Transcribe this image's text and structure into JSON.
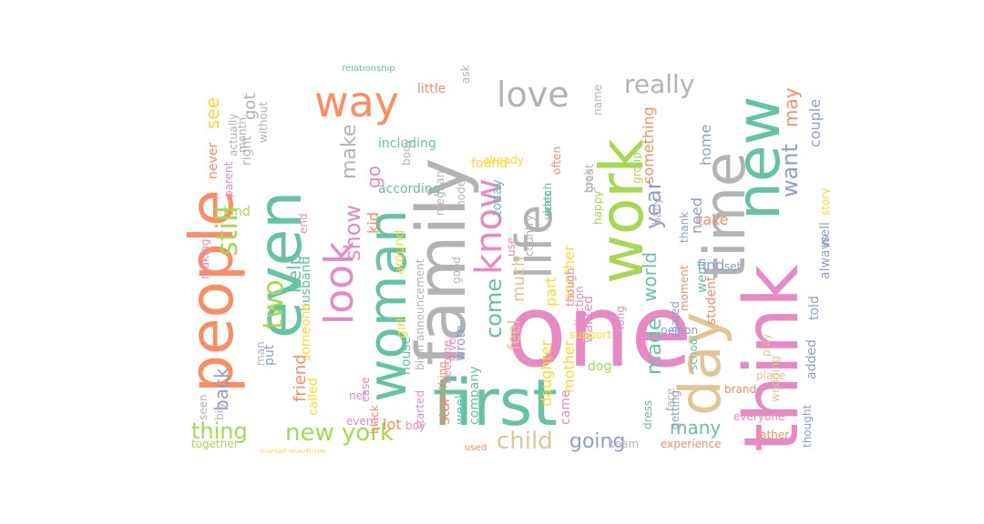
{
  "colors": {
    "teal": "#66c2a5",
    "orange": "#fc8d62",
    "blue": "#8da0cb",
    "pink": "#e78ac3",
    "green": "#a6d854",
    "yellow": "#ffd92f",
    "tan": "#e5c494",
    "gray": "#b3b3b3"
  },
  "words": [
    {
      "t": "people",
      "c": "orange"
    },
    {
      "t": "even",
      "c": "teal"
    },
    {
      "t": "way",
      "c": "orange"
    },
    {
      "t": "family",
      "c": "gray"
    },
    {
      "t": "woman",
      "c": "teal"
    },
    {
      "t": "one",
      "c": "pink"
    },
    {
      "t": "first",
      "c": "teal"
    },
    {
      "t": "life",
      "c": "gray"
    },
    {
      "t": "work",
      "c": "green"
    },
    {
      "t": "time",
      "c": "gray"
    },
    {
      "t": "new",
      "c": "teal"
    },
    {
      "t": "think",
      "c": "pink"
    },
    {
      "t": "day",
      "c": "tan"
    },
    {
      "t": "know",
      "c": "pink"
    },
    {
      "t": "love",
      "c": "gray"
    },
    {
      "t": "look",
      "c": "pink"
    },
    {
      "t": "still",
      "c": "green"
    },
    {
      "t": "see",
      "c": "yellow"
    },
    {
      "t": "got",
      "c": "gray"
    },
    {
      "t": "right",
      "c": "gray"
    },
    {
      "t": "back",
      "c": "blue"
    },
    {
      "t": "thing",
      "c": "green"
    },
    {
      "t": "new york",
      "c": "green"
    },
    {
      "t": "two",
      "c": "green"
    },
    {
      "t": "husband",
      "c": "teal"
    },
    {
      "t": "show",
      "c": "pink"
    },
    {
      "t": "make",
      "c": "gray"
    },
    {
      "t": "go",
      "c": "pink"
    },
    {
      "t": "kid",
      "c": "orange"
    },
    {
      "t": "help",
      "c": "teal"
    },
    {
      "t": "friend",
      "c": "orange"
    },
    {
      "t": "come",
      "c": "teal"
    },
    {
      "t": "child",
      "c": "tan"
    },
    {
      "t": "going",
      "c": "blue"
    },
    {
      "t": "much",
      "c": "tan"
    },
    {
      "t": "feel",
      "c": "tan"
    },
    {
      "t": "year",
      "c": "blue"
    },
    {
      "t": "world",
      "c": "teal"
    },
    {
      "t": "made",
      "c": "teal"
    },
    {
      "t": "many",
      "c": "teal"
    },
    {
      "t": "really",
      "c": "gray"
    },
    {
      "t": "want",
      "c": "blue"
    },
    {
      "t": "may",
      "c": "orange"
    },
    {
      "t": "couple",
      "c": "blue"
    },
    {
      "t": "always",
      "c": "blue"
    },
    {
      "t": "told",
      "c": "blue"
    },
    {
      "t": "added",
      "c": "blue"
    },
    {
      "t": "thought",
      "c": "blue"
    },
    {
      "t": "well",
      "c": "blue"
    },
    {
      "t": "story",
      "c": "yellow"
    },
    {
      "t": "take",
      "c": "orange"
    },
    {
      "t": "something",
      "c": "orange"
    },
    {
      "t": "home",
      "c": "blue"
    },
    {
      "t": "need",
      "c": "blue"
    },
    {
      "t": "find",
      "c": "blue"
    },
    {
      "t": "mother",
      "c": "yellow"
    },
    {
      "t": "another",
      "c": "yellow"
    },
    {
      "t": "dog",
      "c": "green"
    },
    {
      "t": "daughter",
      "c": "yellow"
    },
    {
      "t": "part",
      "c": "yellow"
    },
    {
      "t": "little",
      "c": "orange"
    },
    {
      "t": "lot",
      "c": "orange"
    },
    {
      "t": "star",
      "c": "orange"
    },
    {
      "t": "according",
      "c": "teal"
    },
    {
      "t": "including",
      "c": "teal"
    },
    {
      "t": "relationship",
      "c": "teal"
    },
    {
      "t": "kind",
      "c": "green"
    },
    {
      "t": "never",
      "c": "orange"
    },
    {
      "t": "put",
      "c": "blue"
    },
    {
      "t": "called",
      "c": "yellow"
    },
    {
      "t": "someone",
      "c": "yellow"
    },
    {
      "t": "girl",
      "c": "yellow"
    },
    {
      "t": "around",
      "c": "yellow"
    },
    {
      "t": "together",
      "c": "green"
    },
    {
      "t": "social medium",
      "c": "yellow"
    },
    {
      "t": "house",
      "c": "teal"
    },
    {
      "t": "week",
      "c": "teal"
    },
    {
      "t": "wrote",
      "c": "blue"
    },
    {
      "t": "company",
      "c": "teal"
    },
    {
      "t": "today",
      "c": "teal"
    },
    {
      "t": "watch",
      "c": "teal"
    },
    {
      "t": "experience",
      "c": "orange"
    },
    {
      "t": "student",
      "c": "orange"
    },
    {
      "t": "brand",
      "c": "orange"
    },
    {
      "t": "went",
      "c": "teal"
    },
    {
      "t": "set",
      "c": "blue"
    },
    {
      "t": "moment",
      "c": "orange"
    },
    {
      "t": "school",
      "c": "teal"
    },
    {
      "t": "dress",
      "c": "teal"
    },
    {
      "t": "came",
      "c": "pink"
    },
    {
      "t": "wanted",
      "c": "pink"
    },
    {
      "t": "long",
      "c": "pink"
    },
    {
      "t": "baby",
      "c": "gray"
    },
    {
      "t": "face",
      "c": "gray"
    },
    {
      "t": "group",
      "c": "green"
    },
    {
      "t": "found",
      "c": "yellow"
    },
    {
      "t": "asked",
      "c": "gray"
    },
    {
      "t": "already",
      "c": "yellow"
    },
    {
      "t": "took",
      "c": "gray"
    },
    {
      "t": "end",
      "c": "pink"
    },
    {
      "t": "parent",
      "c": "pink"
    },
    {
      "t": "making",
      "c": "pink"
    },
    {
      "t": "everyone",
      "c": "pink"
    },
    {
      "t": "father",
      "c": "orange"
    },
    {
      "t": "everything",
      "c": "orange"
    },
    {
      "t": "become",
      "c": "pink"
    },
    {
      "t": "though",
      "c": "pink"
    },
    {
      "t": "collection",
      "c": "pink"
    },
    {
      "t": "started",
      "c": "pink"
    },
    {
      "t": "black",
      "c": "orange"
    },
    {
      "t": "used",
      "c": "orange"
    },
    {
      "t": "birth announcement",
      "c": "gray"
    },
    {
      "t": "video",
      "c": "teal"
    },
    {
      "t": "good",
      "c": "gray"
    },
    {
      "t": "great",
      "c": "gray"
    },
    {
      "t": "name",
      "c": "gray"
    },
    {
      "t": "team",
      "c": "gray"
    },
    {
      "t": "often",
      "c": "orange"
    },
    {
      "t": "person",
      "c": "blue"
    },
    {
      "t": "thank",
      "c": "blue"
    },
    {
      "t": "getting",
      "c": "blue"
    },
    {
      "t": "shared",
      "c": "blue"
    },
    {
      "t": "big",
      "c": "gray"
    },
    {
      "t": "man",
      "c": "gray"
    },
    {
      "t": "seen",
      "c": "gray"
    },
    {
      "t": "actually",
      "c": "gray"
    },
    {
      "t": "month",
      "c": "gray"
    },
    {
      "t": "without",
      "c": "gray"
    },
    {
      "t": "body",
      "c": "gray"
    },
    {
      "t": "meghan",
      "c": "gray"
    },
    {
      "t": "model",
      "c": "gray"
    },
    {
      "t": "country",
      "c": "gray"
    },
    {
      "t": "support",
      "c": "yellow"
    },
    {
      "t": "happy",
      "c": "green"
    },
    {
      "t": "place",
      "c": "tan"
    },
    {
      "t": "wedding",
      "c": "tan"
    },
    {
      "t": "play",
      "c": "tan"
    },
    {
      "t": "give",
      "c": "pink"
    },
    {
      "t": "event",
      "c": "pink"
    },
    {
      "t": "net",
      "c": "pink"
    },
    {
      "t": "use",
      "c": "pink"
    },
    {
      "t": "case",
      "c": "pink"
    },
    {
      "t": "boy",
      "c": "pink"
    }
  ]
}
